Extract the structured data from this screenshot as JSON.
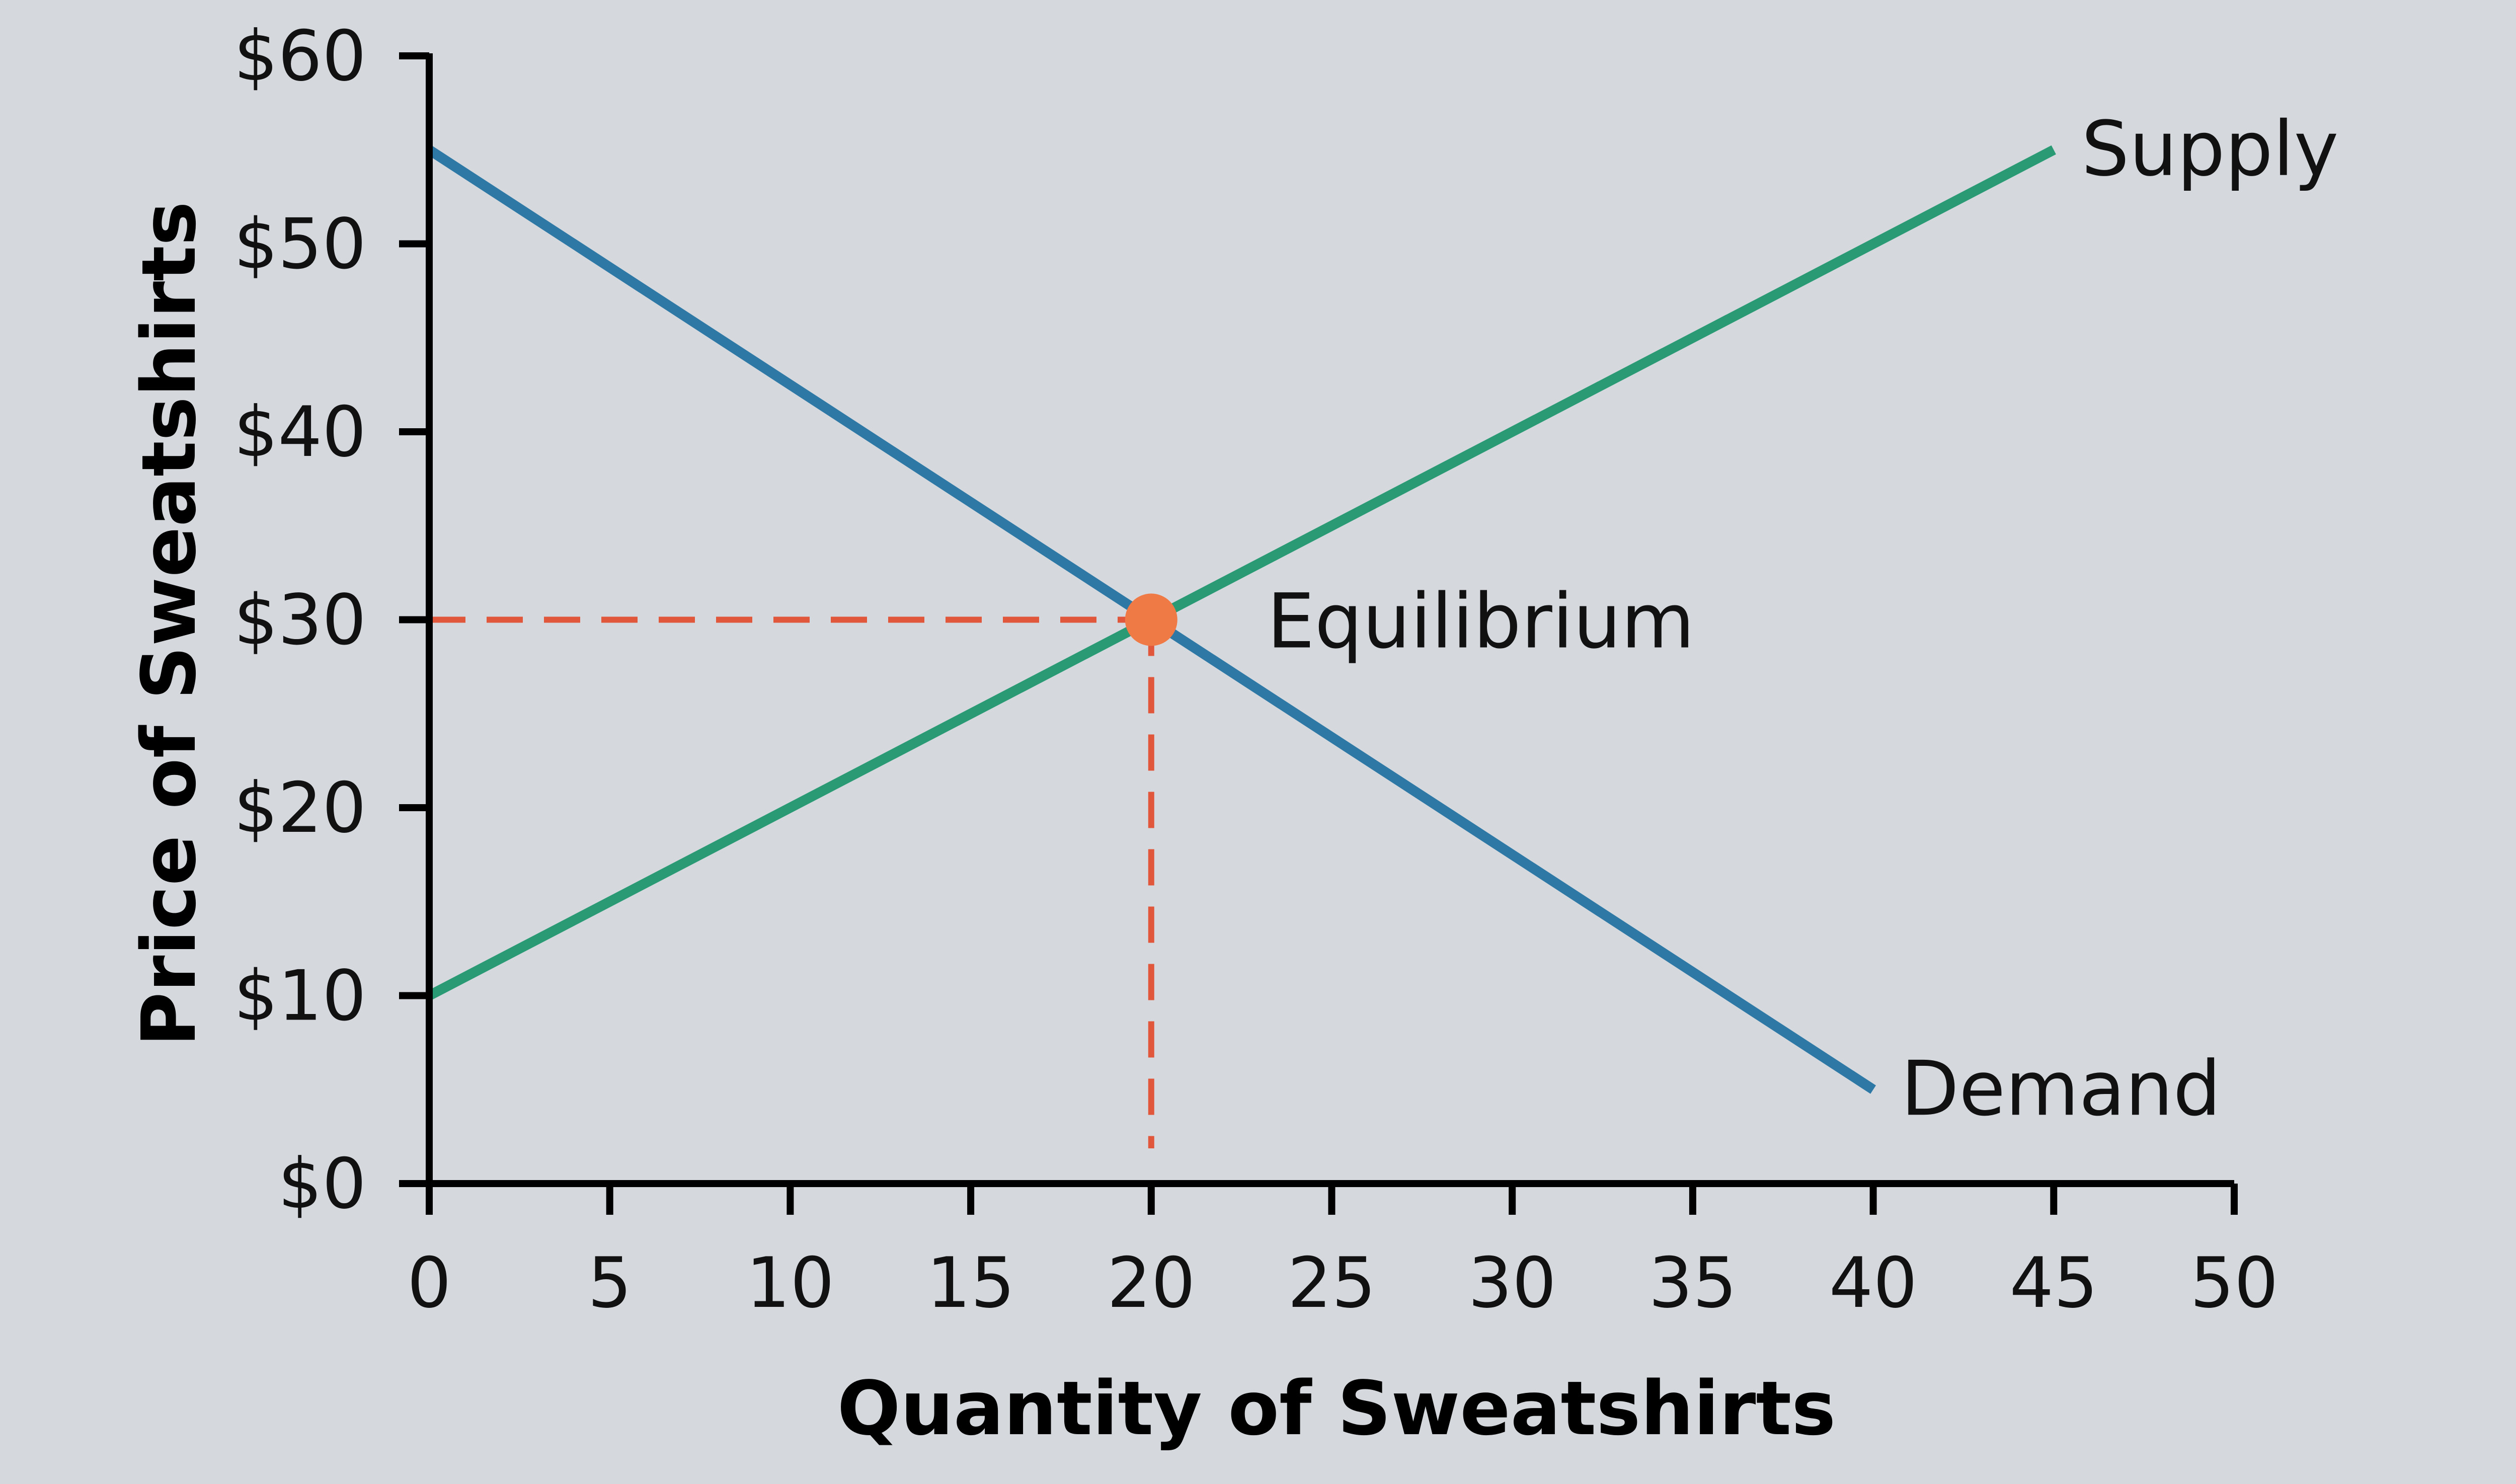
{
  "chart_data": {
    "type": "line",
    "title": "",
    "xlabel": "Quantity of Sweatshirts",
    "ylabel": "Price of Sweatshirts",
    "xlim": [
      0,
      50
    ],
    "ylim": [
      0,
      60
    ],
    "x_ticks": [
      0,
      5,
      10,
      15,
      20,
      25,
      30,
      35,
      40,
      45,
      50
    ],
    "x_tick_labels": [
      "0",
      "5",
      "10",
      "15",
      "20",
      "25",
      "30",
      "35",
      "40",
      "45",
      "50"
    ],
    "y_ticks": [
      0,
      10,
      20,
      30,
      40,
      50,
      60
    ],
    "y_tick_labels": [
      "$0",
      "$10",
      "$20",
      "$30",
      "$40",
      "$50",
      "$60"
    ],
    "grid": false,
    "series": [
      {
        "name": "Demand",
        "color": "#2e78a6",
        "points": [
          {
            "x": 0,
            "y": 55
          },
          {
            "x": 40,
            "y": 5
          }
        ]
      },
      {
        "name": "Supply",
        "color": "#2a9a74",
        "points": [
          {
            "x": 0,
            "y": 10
          },
          {
            "x": 45,
            "y": 55
          }
        ]
      }
    ],
    "equilibrium": {
      "label": "Equilibrium",
      "x": 20,
      "y": 30,
      "color": "#f07a45",
      "guide_color": "#e0573c"
    }
  }
}
